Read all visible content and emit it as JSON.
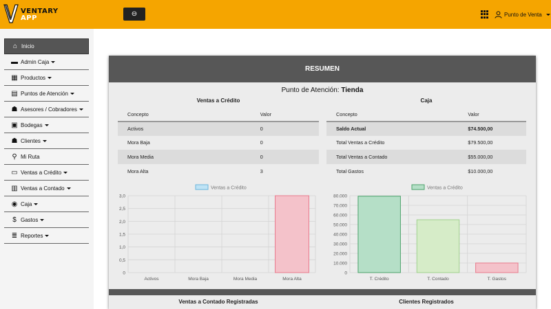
{
  "topbar": {
    "logo_line1": "VENTARY",
    "logo_line2": "APP",
    "toggle_glyph": "⊖",
    "user_label": "Punto de Venta"
  },
  "sidebar": {
    "items": [
      {
        "label": "Inicio",
        "icon": "home-icon",
        "glyph": "⌂"
      },
      {
        "label": "Admin Caja",
        "icon": "wallet-icon",
        "glyph": "▬",
        "caret": true
      },
      {
        "label": "Productos",
        "icon": "box-icon",
        "glyph": "▦",
        "caret": true
      },
      {
        "label": "Puntos de Atención",
        "icon": "store-icon",
        "glyph": "▤",
        "caret": true
      },
      {
        "label": "Asesores / Cobradores",
        "icon": "users-icon",
        "glyph": "☗",
        "caret": true
      },
      {
        "label": "Bodegas",
        "icon": "truck-icon",
        "glyph": "▣",
        "caret": true
      },
      {
        "label": "Clientes",
        "icon": "user-plus-icon",
        "glyph": "☗",
        "caret": true
      },
      {
        "label": "Mi Ruta",
        "icon": "motorcycle-icon",
        "glyph": "⚲"
      },
      {
        "label": "Ventas a Crédito",
        "icon": "credit-card-icon",
        "glyph": "▭",
        "caret": true
      },
      {
        "label": "Ventas a Contado",
        "icon": "basket-icon",
        "glyph": "▥",
        "caret": true
      },
      {
        "label": "Caja",
        "icon": "coins-icon",
        "glyph": "◉",
        "caret": true
      },
      {
        "label": "Gastos",
        "icon": "money-bill-icon",
        "glyph": "$",
        "caret": true
      },
      {
        "label": "Reportes",
        "icon": "server-icon",
        "glyph": "≣",
        "caret": true
      }
    ]
  },
  "resumen": {
    "header": "RESUMEN",
    "punto_prefix": "Punto de Atención: ",
    "punto_name": "Tienda",
    "credit_title": "Ventas a Crédito",
    "caja_title": "Caja",
    "credit_table": {
      "headers": [
        "Concepto",
        "Valor"
      ],
      "rows": [
        [
          "Activos",
          "0"
        ],
        [
          "Mora Baja",
          "0"
        ],
        [
          "Mora Media",
          "0"
        ],
        [
          "Mora Alta",
          "3"
        ]
      ]
    },
    "caja_table": {
      "headers": [
        "Concepto",
        "Valor"
      ],
      "rows": [
        [
          "Saldo Actual",
          "$74.500,00"
        ],
        [
          "Total Ventas a Crédito",
          "$79.500,00"
        ],
        [
          "Total Ventas a Contado",
          "$55.000,00"
        ],
        [
          "Total Gastos",
          "$10.000,00"
        ]
      ]
    },
    "bottom_left_title": "Ventas a Contado Registradas",
    "bottom_right_title": "Clientes Registrados"
  },
  "chart_data": [
    {
      "type": "bar",
      "categories": [
        "Activos",
        "Mora Baja",
        "Mora Media",
        "Mora Alta"
      ],
      "series": [
        {
          "name": "Ventas a Crédito",
          "values": [
            0,
            0,
            0,
            3
          ]
        }
      ],
      "ylim": [
        0,
        3
      ],
      "yticks": [
        "0",
        "0,5",
        "1,0",
        "1,5",
        "2,0",
        "2,5",
        "3,0"
      ],
      "legend_position": "top",
      "bar_fill": "#f4c2ca",
      "bar_stroke": "#e87a8c",
      "legend_fill": "#bfe3f5",
      "legend_stroke": "#6ab4dc"
    },
    {
      "type": "bar",
      "categories": [
        "T. Crédito",
        "T. Contado",
        "T. Gastos"
      ],
      "series": [
        {
          "name": "Ventas a Crédito",
          "values": [
            79500,
            55000,
            10000
          ]
        }
      ],
      "ylim": [
        0,
        80000
      ],
      "yticks": [
        "0",
        "10.000",
        "20.000",
        "30.000",
        "40.000",
        "50.000",
        "60.000",
        "70.000",
        "80.000"
      ],
      "legend_position": "top",
      "bar_fills": [
        "#b5dfc7",
        "#d6ecc8",
        "#f4c2ca"
      ],
      "bar_strokes": [
        "#4aa26a",
        "#9fd08c",
        "#e87a8c"
      ],
      "legend_fill": "#b5dfc7",
      "legend_stroke": "#4aa26a"
    }
  ]
}
